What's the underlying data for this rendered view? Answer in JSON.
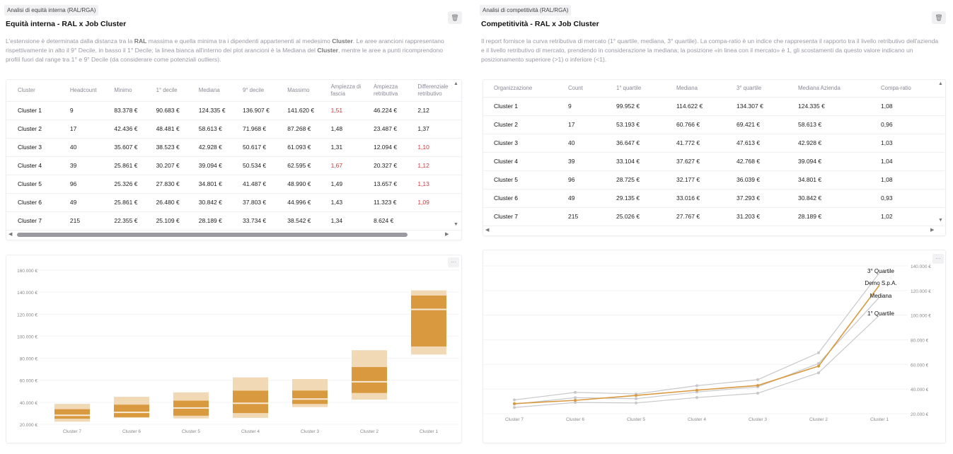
{
  "left": {
    "tag": "Analisi di equità interna (RAL/RGA)",
    "title": "Equità interna - RAL x Job Cluster",
    "description_parts": [
      "L'estensione è determinata dalla distanza tra la ",
      "RAL",
      " massima e quella minima tra i dipendenti appartenenti al medesimo ",
      "Cluster",
      ". Le aree arancioni rappresentano rispettivamente in alto il 9° Decile, in basso il 1° Decile; la linea bianca all'interno dei plot arancioni è la Mediana del ",
      "Cluster",
      ", mentre le aree a punti ricomprendono profili fuori dal range tra 1° e 9° Decile (da considerare come potenziali outliers)."
    ],
    "table": {
      "headers": [
        "Cluster",
        "Headcount",
        "Minimo",
        "1° decile",
        "Mediana",
        "9° decile",
        "Massimo",
        "Ampiezza di fascia",
        "Ampiezza retributiva",
        "Differenziale retributivo"
      ],
      "rows": [
        {
          "cells": [
            "Cluster 1",
            "9",
            "83.378 €",
            "90.683 €",
            "124.335 €",
            "136.907 €",
            "141.620 €",
            "1,51",
            "46.224 €",
            "2,12"
          ],
          "red": [
            7
          ]
        },
        {
          "cells": [
            "Cluster 2",
            "17",
            "42.436 €",
            "48.481 €",
            "58.613 €",
            "71.968 €",
            "87.268 €",
            "1,48",
            "23.487 €",
            "1,37"
          ],
          "red": []
        },
        {
          "cells": [
            "Cluster 3",
            "40",
            "35.607 €",
            "38.523 €",
            "42.928 €",
            "50.617 €",
            "61.093 €",
            "1,31",
            "12.094 €",
            "1,10"
          ],
          "red": [
            9
          ]
        },
        {
          "cells": [
            "Cluster 4",
            "39",
            "25.861 €",
            "30.207 €",
            "39.094 €",
            "50.534 €",
            "62.595 €",
            "1,67",
            "20.327 €",
            "1,12"
          ],
          "red": [
            7,
            9
          ]
        },
        {
          "cells": [
            "Cluster 5",
            "96",
            "25.326 €",
            "27.830 €",
            "34.801 €",
            "41.487 €",
            "48.990 €",
            "1,49",
            "13.657 €",
            "1,13"
          ],
          "red": [
            9
          ]
        },
        {
          "cells": [
            "Cluster 6",
            "49",
            "25.861 €",
            "26.480 €",
            "30.842 €",
            "37.803 €",
            "44.996 €",
            "1,43",
            "11.323 €",
            "1,09"
          ],
          "red": [
            9
          ]
        },
        {
          "cells": [
            "Cluster 7",
            "215",
            "22.355 €",
            "25.109 €",
            "28.189 €",
            "33.734 €",
            "38.542 €",
            "1,34",
            "8.624 €",
            ""
          ],
          "red": []
        }
      ]
    }
  },
  "right": {
    "tag": "Analisi di competitività (RAL/RGA)",
    "title": "Competitività - RAL x Job Cluster",
    "description": "Il report fornisce la curva retributiva di mercato (1° quartile, mediana, 3° quartile). La compa-ratio è un indice che rappresenta il rapporto tra il livello retributivo dell'azienda e il livello retributivo di mercato, prendendo in considerazione la mediana; la posizione «in linea con il mercato» è 1, gli scostamenti da questo valore indicano un posizionamento superiore (>1) o inferiore (<1).",
    "table": {
      "headers": [
        "Organizzazione",
        "Count",
        "1° quartile",
        "Mediana",
        "3° quartile",
        "Mediana Azienda",
        "Compa-ratio"
      ],
      "rows": [
        [
          "Cluster 1",
          "9",
          "99.952 €",
          "114.622 €",
          "134.307 €",
          "124.335 €",
          "1,08"
        ],
        [
          "Cluster 2",
          "17",
          "53.193 €",
          "60.766 €",
          "69.421 €",
          "58.613 €",
          "0,96"
        ],
        [
          "Cluster 3",
          "40",
          "36.647 €",
          "41.772 €",
          "47.613 €",
          "42.928 €",
          "1,03"
        ],
        [
          "Cluster 4",
          "39",
          "33.104 €",
          "37.627 €",
          "42.768 €",
          "39.094 €",
          "1,04"
        ],
        [
          "Cluster 5",
          "96",
          "28.725 €",
          "32.177 €",
          "36.039 €",
          "34.801 €",
          "1,08"
        ],
        [
          "Cluster 6",
          "49",
          "29.135 €",
          "33.016 €",
          "37.293 €",
          "30.842 €",
          "0,93"
        ],
        [
          "Cluster 7",
          "215",
          "25.026 €",
          "27.767 €",
          "31.203 €",
          "28.189 €",
          "1,02"
        ]
      ]
    }
  },
  "colors": {
    "accent": "#d9993f",
    "light": "#f1d9b6",
    "median": "#f7ead6",
    "red": "#d2373a",
    "grey": "#c8c8cc"
  },
  "chart_data": [
    {
      "type": "bar",
      "title": "",
      "categories": [
        "Cluster 7",
        "Cluster 6",
        "Cluster 5",
        "Cluster 4",
        "Cluster 3",
        "Cluster 2",
        "Cluster 1"
      ],
      "series": [
        {
          "name": "Minimo",
          "values": [
            22355,
            25861,
            25326,
            25861,
            35607,
            42436,
            83378
          ]
        },
        {
          "name": "1° decile",
          "values": [
            25109,
            26480,
            27830,
            30207,
            38523,
            48481,
            90683
          ]
        },
        {
          "name": "Mediana",
          "values": [
            28189,
            30842,
            34801,
            39094,
            42928,
            58613,
            124335
          ]
        },
        {
          "name": "9° decile",
          "values": [
            33734,
            37803,
            41487,
            50534,
            50617,
            71968,
            136907
          ]
        },
        {
          "name": "Massimo",
          "values": [
            38542,
            44996,
            48990,
            62595,
            61093,
            87268,
            141620
          ]
        }
      ],
      "yticks": [
        "20.000 €",
        "40.000 €",
        "60.000 €",
        "80.000 €",
        "100.000 €",
        "120.000 €",
        "140.000 €",
        "160.000 €"
      ],
      "ylim": [
        20000,
        160000
      ],
      "grid": true
    },
    {
      "type": "line",
      "title": "",
      "categories": [
        "Cluster 7",
        "Cluster 6",
        "Cluster 5",
        "Cluster 4",
        "Cluster 3",
        "Cluster 2",
        "Cluster 1"
      ],
      "series": [
        {
          "name": "3° Quartile",
          "values": [
            31203,
            37293,
            36039,
            42768,
            47613,
            69421,
            134307
          ]
        },
        {
          "name": "Demo S.p.A.",
          "values": [
            28189,
            30842,
            34801,
            39094,
            42928,
            58613,
            124335
          ]
        },
        {
          "name": "Mediana",
          "values": [
            27767,
            33016,
            32177,
            37627,
            41772,
            60766,
            114622
          ]
        },
        {
          "name": "1° Quartile",
          "values": [
            25026,
            29135,
            28725,
            33104,
            36647,
            53193,
            99952
          ]
        }
      ],
      "yticks": [
        "20.000 €",
        "40.000 €",
        "60.000 €",
        "80.000 €",
        "100.000 €",
        "120.000 €",
        "140.000 €"
      ],
      "ylim": [
        20000,
        140000
      ],
      "grid": true
    }
  ],
  "icons": {
    "trash": "trash-icon",
    "menu": "menu-icon"
  }
}
